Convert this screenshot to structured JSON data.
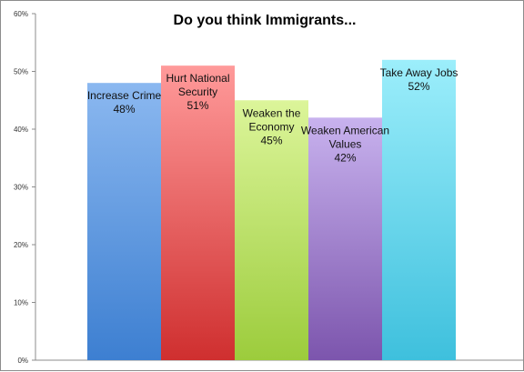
{
  "chart_data": {
    "type": "bar",
    "title": "Do you think Immigrants...",
    "xlabel": "",
    "ylabel": "",
    "ylim": [
      0,
      60
    ],
    "y_ticks": [
      "0%",
      "10%",
      "20%",
      "30%",
      "40%",
      "50%",
      "60%"
    ],
    "grid": false,
    "categories": [
      [
        "Increase Crime"
      ],
      [
        "Hurt National",
        "Security"
      ],
      [
        "Weaken the",
        "Economy"
      ],
      [
        "Weaken American",
        "Values"
      ],
      [
        "Take Away Jobs"
      ]
    ],
    "values": [
      48,
      51,
      45,
      42,
      52
    ],
    "value_labels": [
      "48%",
      "51%",
      "45%",
      "42%",
      "52%"
    ],
    "colors": [
      [
        "#8bb8f0",
        "#3d7fd1"
      ],
      [
        "#ff9a9a",
        "#cf2f2f"
      ],
      [
        "#dcf59a",
        "#9ccc3c"
      ],
      [
        "#c8b2ee",
        "#7c55ad"
      ],
      [
        "#9ceefb",
        "#3ec0dd"
      ]
    ]
  }
}
